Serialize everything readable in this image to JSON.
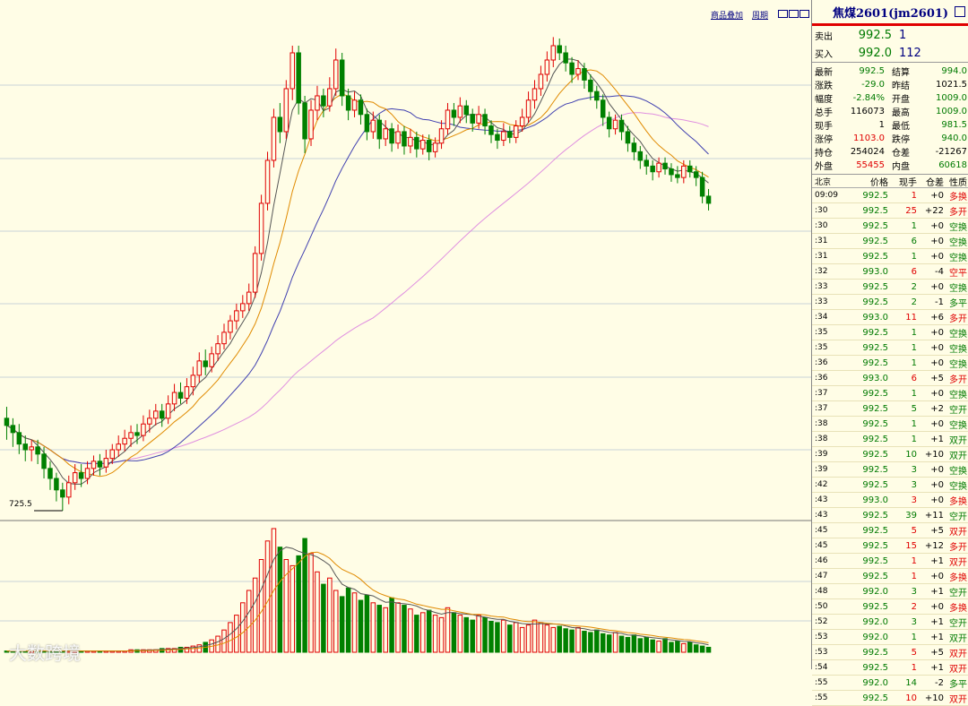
{
  "top_links": {
    "overlay": "商品叠加",
    "period": "周期"
  },
  "low_label": "725.5",
  "watermark": "大数跨境",
  "panel": {
    "title": "焦煤2601(jm2601)",
    "ask": {
      "label": "卖出",
      "price": "992.5",
      "volume": "1"
    },
    "bid": {
      "label": "买入",
      "price": "992.0",
      "volume": "112"
    },
    "stats": [
      {
        "l1": "最新",
        "v1": "992.5",
        "c1": "green",
        "l2": "结算",
        "v2": "994.0",
        "c2": "green"
      },
      {
        "l1": "涨跌",
        "v1": "-29.0",
        "c1": "green",
        "l2": "昨结",
        "v2": "1021.5",
        "c2": "blk"
      },
      {
        "l1": "幅度",
        "v1": "-2.84%",
        "c1": "green",
        "l2": "开盘",
        "v2": "1009.0",
        "c2": "green"
      },
      {
        "l1": "总手",
        "v1": "116073",
        "c1": "blk",
        "l2": "最高",
        "v2": "1009.0",
        "c2": "green"
      },
      {
        "l1": "现手",
        "v1": "1",
        "c1": "blk",
        "l2": "最低",
        "v2": "981.5",
        "c2": "green"
      },
      {
        "l1": "涨停",
        "v1": "1103.0",
        "c1": "red",
        "l2": "跌停",
        "v2": "940.0",
        "c2": "green"
      },
      {
        "l1": "持仓",
        "v1": "254024",
        "c1": "blk",
        "l2": "仓差",
        "v2": "-21267",
        "c2": "blk"
      },
      {
        "l1": "外盘",
        "v1": "55455",
        "c1": "red",
        "l2": "内盘",
        "v2": "60618",
        "c2": "green"
      }
    ],
    "tick_header": {
      "time": "北京",
      "price": "价格",
      "vol": "现手",
      "oi": "仓差",
      "nature": "性质"
    },
    "ticks": [
      {
        "time": "09:09",
        "price": "992.5",
        "vol": "1",
        "oi": "+0",
        "nature": "多换",
        "vc": "red",
        "nc": "red"
      },
      {
        "time": ":30",
        "price": "992.5",
        "vol": "25",
        "oi": "+22",
        "nature": "多开",
        "vc": "red",
        "nc": "red"
      },
      {
        "time": ":30",
        "price": "992.5",
        "vol": "1",
        "oi": "+0",
        "nature": "空换",
        "vc": "green",
        "nc": "green"
      },
      {
        "time": ":31",
        "price": "992.5",
        "vol": "6",
        "oi": "+0",
        "nature": "空换",
        "vc": "green",
        "nc": "green"
      },
      {
        "time": ":31",
        "price": "992.5",
        "vol": "1",
        "oi": "+0",
        "nature": "空换",
        "vc": "green",
        "nc": "green"
      },
      {
        "time": ":32",
        "price": "993.0",
        "vol": "6",
        "oi": "-4",
        "nature": "空平",
        "vc": "red",
        "nc": "red"
      },
      {
        "time": ":33",
        "price": "992.5",
        "vol": "2",
        "oi": "+0",
        "nature": "空换",
        "vc": "green",
        "nc": "green"
      },
      {
        "time": ":33",
        "price": "992.5",
        "vol": "2",
        "oi": "-1",
        "nature": "多平",
        "vc": "green",
        "nc": "green"
      },
      {
        "time": ":34",
        "price": "993.0",
        "vol": "11",
        "oi": "+6",
        "nature": "多开",
        "vc": "red",
        "nc": "red"
      },
      {
        "time": ":35",
        "price": "992.5",
        "vol": "1",
        "oi": "+0",
        "nature": "空换",
        "vc": "green",
        "nc": "green"
      },
      {
        "time": ":35",
        "price": "992.5",
        "vol": "1",
        "oi": "+0",
        "nature": "空换",
        "vc": "green",
        "nc": "green"
      },
      {
        "time": ":36",
        "price": "992.5",
        "vol": "1",
        "oi": "+0",
        "nature": "空换",
        "vc": "green",
        "nc": "green"
      },
      {
        "time": ":36",
        "price": "993.0",
        "vol": "6",
        "oi": "+5",
        "nature": "多开",
        "vc": "red",
        "nc": "red"
      },
      {
        "time": ":37",
        "price": "992.5",
        "vol": "1",
        "oi": "+0",
        "nature": "空换",
        "vc": "green",
        "nc": "green"
      },
      {
        "time": ":37",
        "price": "992.5",
        "vol": "5",
        "oi": "+2",
        "nature": "空开",
        "vc": "green",
        "nc": "green"
      },
      {
        "time": ":38",
        "price": "992.5",
        "vol": "1",
        "oi": "+0",
        "nature": "空换",
        "vc": "green",
        "nc": "green"
      },
      {
        "time": ":38",
        "price": "992.5",
        "vol": "1",
        "oi": "+1",
        "nature": "双开",
        "vc": "green",
        "nc": "green"
      },
      {
        "time": ":39",
        "price": "992.5",
        "vol": "10",
        "oi": "+10",
        "nature": "双开",
        "vc": "green",
        "nc": "green"
      },
      {
        "time": ":39",
        "price": "992.5",
        "vol": "3",
        "oi": "+0",
        "nature": "空换",
        "vc": "green",
        "nc": "green"
      },
      {
        "time": ":42",
        "price": "992.5",
        "vol": "3",
        "oi": "+0",
        "nature": "空换",
        "vc": "green",
        "nc": "green"
      },
      {
        "time": ":43",
        "price": "993.0",
        "vol": "3",
        "oi": "+0",
        "nature": "多换",
        "vc": "red",
        "nc": "red"
      },
      {
        "time": ":43",
        "price": "992.5",
        "vol": "39",
        "oi": "+11",
        "nature": "空开",
        "vc": "green",
        "nc": "green"
      },
      {
        "time": ":45",
        "price": "992.5",
        "vol": "5",
        "oi": "+5",
        "nature": "双开",
        "vc": "red",
        "nc": "red"
      },
      {
        "time": ":45",
        "price": "992.5",
        "vol": "15",
        "oi": "+12",
        "nature": "多开",
        "vc": "red",
        "nc": "red"
      },
      {
        "time": ":46",
        "price": "992.5",
        "vol": "1",
        "oi": "+1",
        "nature": "双开",
        "vc": "red",
        "nc": "red"
      },
      {
        "time": ":47",
        "price": "992.5",
        "vol": "1",
        "oi": "+0",
        "nature": "多换",
        "vc": "red",
        "nc": "red"
      },
      {
        "time": ":48",
        "price": "992.0",
        "vol": "3",
        "oi": "+1",
        "nature": "空开",
        "vc": "green",
        "nc": "green"
      },
      {
        "time": ":50",
        "price": "992.5",
        "vol": "2",
        "oi": "+0",
        "nature": "多换",
        "vc": "red",
        "nc": "red"
      },
      {
        "time": ":52",
        "price": "992.0",
        "vol": "3",
        "oi": "+1",
        "nature": "空开",
        "vc": "green",
        "nc": "green"
      },
      {
        "time": ":53",
        "price": "992.0",
        "vol": "1",
        "oi": "+1",
        "nature": "双开",
        "vc": "green",
        "nc": "green"
      },
      {
        "time": ":53",
        "price": "992.5",
        "vol": "5",
        "oi": "+5",
        "nature": "双开",
        "vc": "red",
        "nc": "red"
      },
      {
        "time": ":54",
        "price": "992.5",
        "vol": "1",
        "oi": "+1",
        "nature": "双开",
        "vc": "red",
        "nc": "red"
      },
      {
        "time": ":55",
        "price": "992.0",
        "vol": "14",
        "oi": "-2",
        "nature": "多平",
        "vc": "green",
        "nc": "green"
      },
      {
        "time": ":55",
        "price": "992.5",
        "vol": "10",
        "oi": "+10",
        "nature": "双开",
        "vc": "red",
        "nc": "red"
      }
    ]
  },
  "colors": {
    "up": "#e00000",
    "down": "#008000",
    "ma5": "#555555",
    "ma10": "#e08a00",
    "ma20": "#4040b0",
    "ma60": "#e090e0",
    "background": "#fffde6"
  },
  "chart_data": {
    "type": "candlestick",
    "price_range": [
      725.5,
      1060
    ],
    "annotated_low": 725.5,
    "candles": [
      [
        790,
        785,
        798,
        775
      ],
      [
        785,
        780,
        790,
        770
      ],
      [
        780,
        772,
        786,
        765
      ],
      [
        772,
        768,
        778,
        760
      ],
      [
        768,
        770,
        775,
        760
      ],
      [
        770,
        765,
        775,
        758
      ],
      [
        765,
        755,
        770,
        748
      ],
      [
        755,
        748,
        760,
        740
      ],
      [
        748,
        740,
        752,
        732
      ],
      [
        740,
        735,
        745,
        725.5
      ],
      [
        735,
        745,
        750,
        730
      ],
      [
        745,
        752,
        758,
        740
      ],
      [
        752,
        748,
        758,
        742
      ],
      [
        748,
        755,
        760,
        744
      ],
      [
        755,
        760,
        764,
        750
      ],
      [
        760,
        756,
        765,
        750
      ],
      [
        756,
        762,
        768,
        752
      ],
      [
        762,
        768,
        772,
        758
      ],
      [
        768,
        772,
        778,
        763
      ],
      [
        772,
        776,
        782,
        767
      ],
      [
        776,
        780,
        785,
        770
      ],
      [
        780,
        778,
        786,
        772
      ],
      [
        778,
        786,
        792,
        774
      ],
      [
        786,
        790,
        796,
        780
      ],
      [
        790,
        795,
        800,
        785
      ],
      [
        795,
        790,
        800,
        784
      ],
      [
        790,
        800,
        806,
        786
      ],
      [
        800,
        808,
        814,
        795
      ],
      [
        808,
        804,
        815,
        800
      ],
      [
        804,
        812,
        818,
        800
      ],
      [
        812,
        820,
        826,
        806
      ],
      [
        820,
        830,
        836,
        815
      ],
      [
        830,
        826,
        838,
        820
      ],
      [
        826,
        835,
        840,
        822
      ],
      [
        835,
        842,
        848,
        830
      ],
      [
        842,
        850,
        856,
        838
      ],
      [
        850,
        858,
        862,
        845
      ],
      [
        858,
        865,
        870,
        852
      ],
      [
        865,
        870,
        876,
        860
      ],
      [
        870,
        878,
        884,
        865
      ],
      [
        878,
        905,
        910,
        874
      ],
      [
        905,
        940,
        946,
        900
      ],
      [
        940,
        970,
        976,
        935
      ],
      [
        970,
        1000,
        1006,
        965
      ],
      [
        1000,
        990,
        1010,
        982
      ],
      [
        990,
        1020,
        1026,
        985
      ],
      [
        1020,
        1045,
        1050,
        1012
      ],
      [
        1045,
        1010,
        1050,
        1002
      ],
      [
        1010,
        985,
        1015,
        975
      ],
      [
        985,
        1005,
        1012,
        980
      ],
      [
        1005,
        1015,
        1022,
        998
      ],
      [
        1015,
        1008,
        1020,
        1000
      ],
      [
        1008,
        1020,
        1028,
        1004
      ],
      [
        1020,
        1040,
        1048,
        1015
      ],
      [
        1040,
        1015,
        1045,
        1008
      ],
      [
        1015,
        1005,
        1020,
        998
      ],
      [
        1005,
        1012,
        1018,
        1000
      ],
      [
        1012,
        1002,
        1016,
        995
      ],
      [
        1002,
        990,
        1006,
        984
      ],
      [
        990,
        998,
        1004,
        985
      ],
      [
        998,
        985,
        1002,
        978
      ],
      [
        985,
        992,
        998,
        980
      ],
      [
        992,
        982,
        996,
        976
      ],
      [
        982,
        990,
        995,
        978
      ],
      [
        990,
        980,
        994,
        974
      ],
      [
        980,
        986,
        992,
        975
      ],
      [
        986,
        978,
        990,
        972
      ],
      [
        978,
        984,
        988,
        974
      ],
      [
        984,
        976,
        988,
        970
      ],
      [
        976,
        982,
        986,
        972
      ],
      [
        982,
        992,
        998,
        978
      ],
      [
        992,
        1005,
        1010,
        988
      ],
      [
        1005,
        1000,
        1010,
        994
      ],
      [
        1000,
        1008,
        1014,
        996
      ],
      [
        1008,
        1002,
        1012,
        996
      ],
      [
        1002,
        996,
        1006,
        990
      ],
      [
        996,
        1002,
        1008,
        992
      ],
      [
        1002,
        994,
        1006,
        988
      ],
      [
        994,
        988,
        998,
        982
      ],
      [
        988,
        984,
        992,
        978
      ],
      [
        984,
        990,
        996,
        980
      ],
      [
        990,
        986,
        994,
        982
      ],
      [
        986,
        994,
        998,
        982
      ],
      [
        994,
        1000,
        1006,
        990
      ],
      [
        1000,
        1012,
        1018,
        996
      ],
      [
        1012,
        1020,
        1026,
        1006
      ],
      [
        1020,
        1030,
        1036,
        1015
      ],
      [
        1030,
        1040,
        1046,
        1025
      ],
      [
        1040,
        1050,
        1056,
        1035
      ],
      [
        1050,
        1045,
        1055,
        1040
      ],
      [
        1045,
        1038,
        1050,
        1032
      ],
      [
        1038,
        1030,
        1042,
        1024
      ],
      [
        1030,
        1034,
        1040,
        1026
      ],
      [
        1034,
        1026,
        1038,
        1020
      ],
      [
        1026,
        1018,
        1030,
        1012
      ],
      [
        1018,
        1012,
        1022,
        1006
      ],
      [
        1012,
        1000,
        1016,
        994
      ],
      [
        1000,
        992,
        1004,
        986
      ],
      [
        992,
        998,
        1002,
        988
      ],
      [
        998,
        990,
        1002,
        984
      ],
      [
        990,
        982,
        994,
        976
      ],
      [
        982,
        976,
        986,
        970
      ],
      [
        976,
        970,
        980,
        964
      ],
      [
        970,
        966,
        974,
        960
      ],
      [
        966,
        962,
        970,
        956
      ],
      [
        962,
        968,
        972,
        958
      ],
      [
        968,
        964,
        972,
        960
      ],
      [
        964,
        960,
        968,
        955
      ],
      [
        960,
        958,
        966,
        954
      ],
      [
        958,
        966,
        970,
        954
      ],
      [
        966,
        962,
        970,
        958
      ],
      [
        962,
        958,
        966,
        952
      ],
      [
        958,
        945,
        962,
        940
      ],
      [
        945,
        940,
        950,
        935
      ]
    ],
    "volume_relative": [
      1,
      1,
      1,
      1,
      1,
      1,
      1,
      1,
      1,
      1,
      1,
      1,
      1,
      1,
      1,
      1,
      1,
      1,
      1,
      1,
      2,
      2,
      2,
      2,
      2,
      3,
      3,
      3,
      4,
      4,
      5,
      6,
      8,
      10,
      13,
      18,
      24,
      30,
      40,
      50,
      60,
      75,
      90,
      100,
      85,
      75,
      70,
      78,
      92,
      80,
      65,
      55,
      60,
      50,
      45,
      52,
      48,
      42,
      46,
      40,
      38,
      36,
      44,
      40,
      38,
      35,
      30,
      32,
      34,
      30,
      28,
      36,
      32,
      30,
      28,
      26,
      30,
      28,
      25,
      24,
      26,
      22,
      24,
      20,
      22,
      26,
      24,
      22,
      20,
      21,
      19,
      18,
      20,
      17,
      16,
      18,
      15,
      14,
      16,
      13,
      12,
      14,
      11,
      12,
      10,
      9,
      11,
      8,
      9,
      7,
      8,
      6,
      5,
      4
    ]
  }
}
